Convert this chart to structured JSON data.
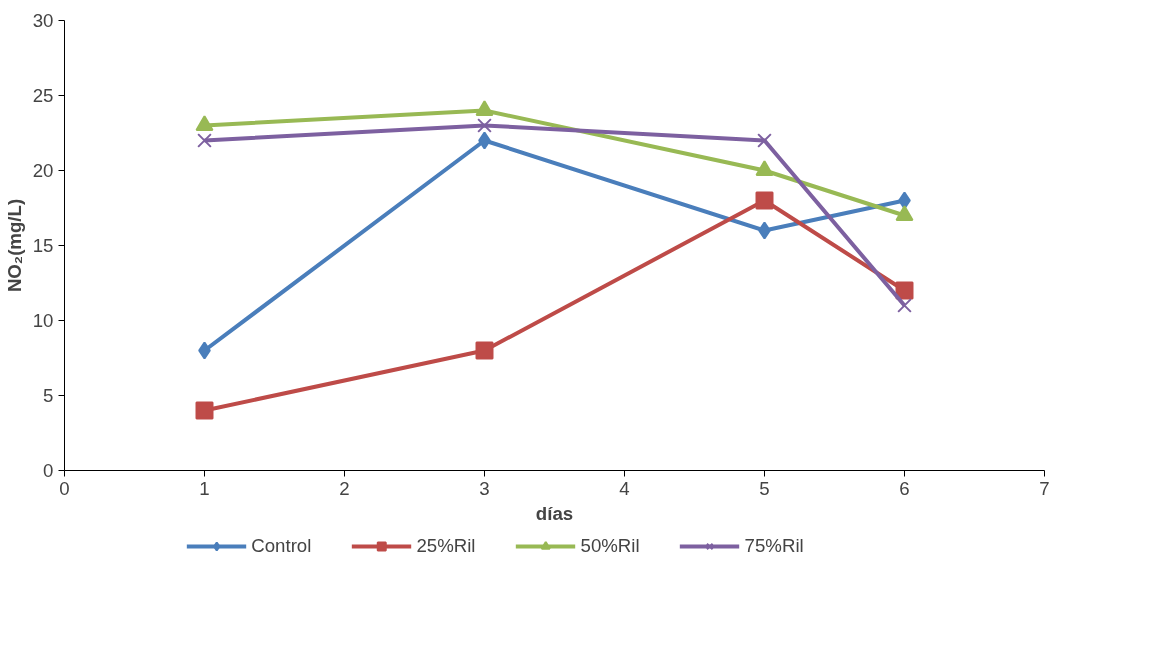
{
  "chart_data": {
    "type": "line",
    "xlabel": "días",
    "ylabel": "NO₂(mg/L)",
    "x": [
      1,
      3,
      5,
      6
    ],
    "series": [
      {
        "name": "Control",
        "color": "#4a7ebb",
        "marker": "diamond",
        "values": [
          8,
          22,
          16,
          18
        ]
      },
      {
        "name": "25%Ril",
        "color": "#be4b48",
        "marker": "square",
        "values": [
          4,
          8,
          18,
          12
        ]
      },
      {
        "name": "50%Ril",
        "color": "#98b954",
        "marker": "triangle",
        "values": [
          23,
          24,
          20,
          17
        ]
      },
      {
        "name": "75%Ril",
        "color": "#7d60a0",
        "marker": "cross",
        "values": [
          22,
          23,
          22,
          11
        ]
      }
    ],
    "xlim": [
      0,
      7
    ],
    "xticks": [
      0,
      1,
      2,
      3,
      4,
      5,
      6,
      7
    ],
    "ylim": [
      0,
      30
    ],
    "yticks": [
      0,
      5,
      10,
      15,
      20,
      25,
      30
    ],
    "grid": false,
    "legend": "bottom",
    "line_style": "solid"
  }
}
